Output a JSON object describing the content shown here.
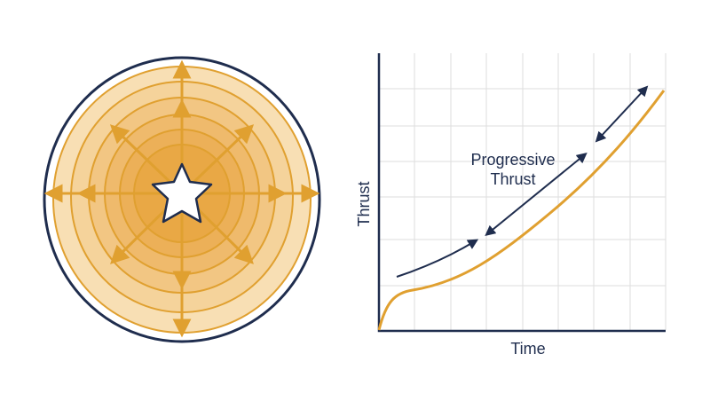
{
  "annotation": [
    "Progressive",
    "Thrust"
  ],
  "y_axis_label": "Thrust",
  "x_axis_label": "Time"
}
